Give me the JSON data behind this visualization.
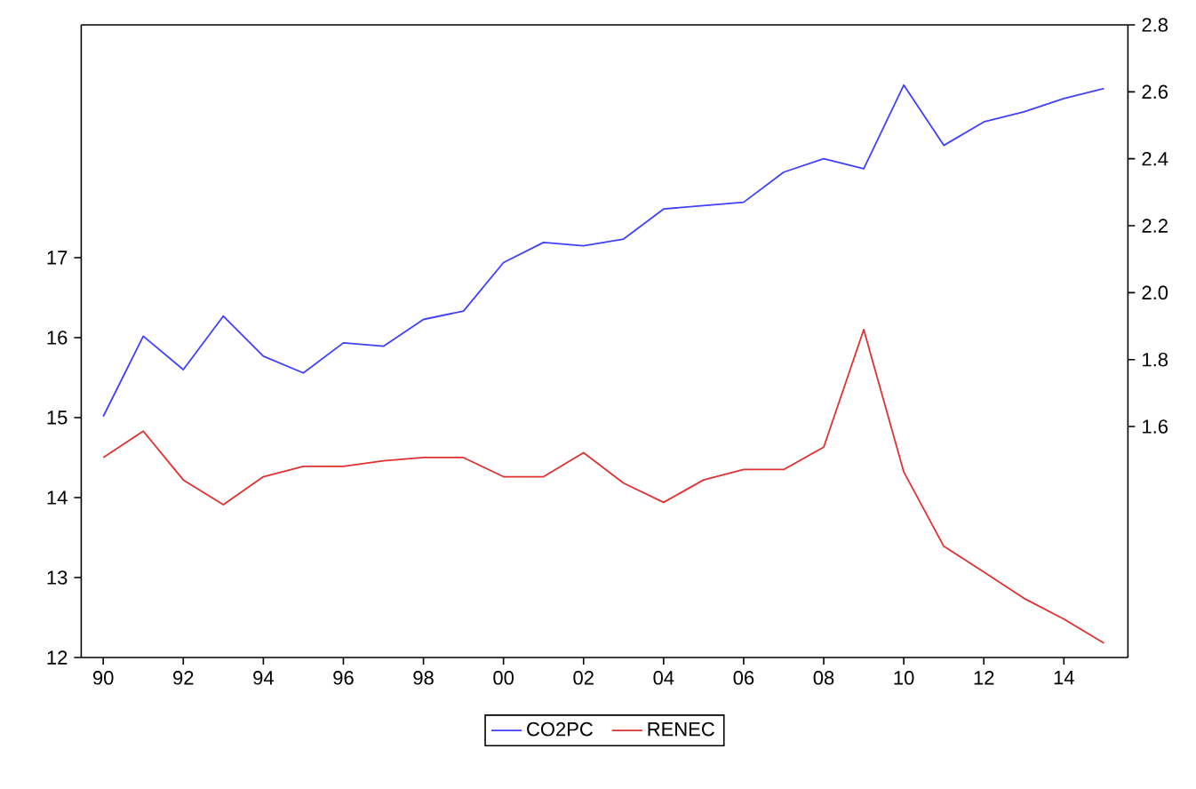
{
  "chart_data": {
    "type": "line",
    "x": [
      1990,
      1991,
      1992,
      1993,
      1994,
      1995,
      1996,
      1997,
      1998,
      1999,
      2000,
      2001,
      2002,
      2003,
      2004,
      2005,
      2006,
      2007,
      2008,
      2009,
      2010,
      2011,
      2012,
      2013,
      2014,
      2015
    ],
    "series": [
      {
        "name": "CO2PC",
        "color": "#4040ff",
        "axis": "y2",
        "values": [
          1.63,
          1.87,
          1.77,
          1.93,
          1.81,
          1.76,
          1.85,
          1.84,
          1.92,
          1.945,
          2.09,
          2.15,
          2.14,
          2.16,
          2.25,
          2.26,
          2.27,
          2.36,
          2.4,
          2.37,
          2.62,
          2.44,
          2.51,
          2.54,
          2.58,
          2.61
        ]
      },
      {
        "name": "RENEC",
        "color": "#e03030",
        "axis": "y",
        "values": [
          14.5,
          14.83,
          14.22,
          13.91,
          14.26,
          14.39,
          14.39,
          14.46,
          14.5,
          14.5,
          14.26,
          14.26,
          14.56,
          14.18,
          13.94,
          14.22,
          14.35,
          14.35,
          14.63,
          16.1,
          14.32,
          13.39,
          13.07,
          12.74,
          12.48,
          12.18
        ]
      }
    ],
    "xlim": [
      1989.45,
      2015.6
    ],
    "xticks": [
      {
        "value": 1990,
        "label": "90"
      },
      {
        "value": 1992,
        "label": "92"
      },
      {
        "value": 1994,
        "label": "94"
      },
      {
        "value": 1996,
        "label": "96"
      },
      {
        "value": 1998,
        "label": "98"
      },
      {
        "value": 2000,
        "label": "00"
      },
      {
        "value": 2002,
        "label": "02"
      },
      {
        "value": 2004,
        "label": "04"
      },
      {
        "value": 2006,
        "label": "06"
      },
      {
        "value": 2008,
        "label": "08"
      },
      {
        "value": 2010,
        "label": "10"
      },
      {
        "value": 2012,
        "label": "12"
      },
      {
        "value": 2014,
        "label": "14"
      }
    ],
    "ylim": [
      12,
      19.91
    ],
    "yticks": [
      12,
      13,
      14,
      15,
      16,
      17
    ],
    "y2lim": [
      0.91,
      2.8
    ],
    "y2ticks": [
      1.6,
      1.8,
      {
        "value": 2.0,
        "label": "2.0"
      },
      2.2,
      2.4,
      2.6,
      2.8
    ],
    "legend": "bottom",
    "grid": false,
    "marker": "none",
    "line_style": "solid"
  }
}
